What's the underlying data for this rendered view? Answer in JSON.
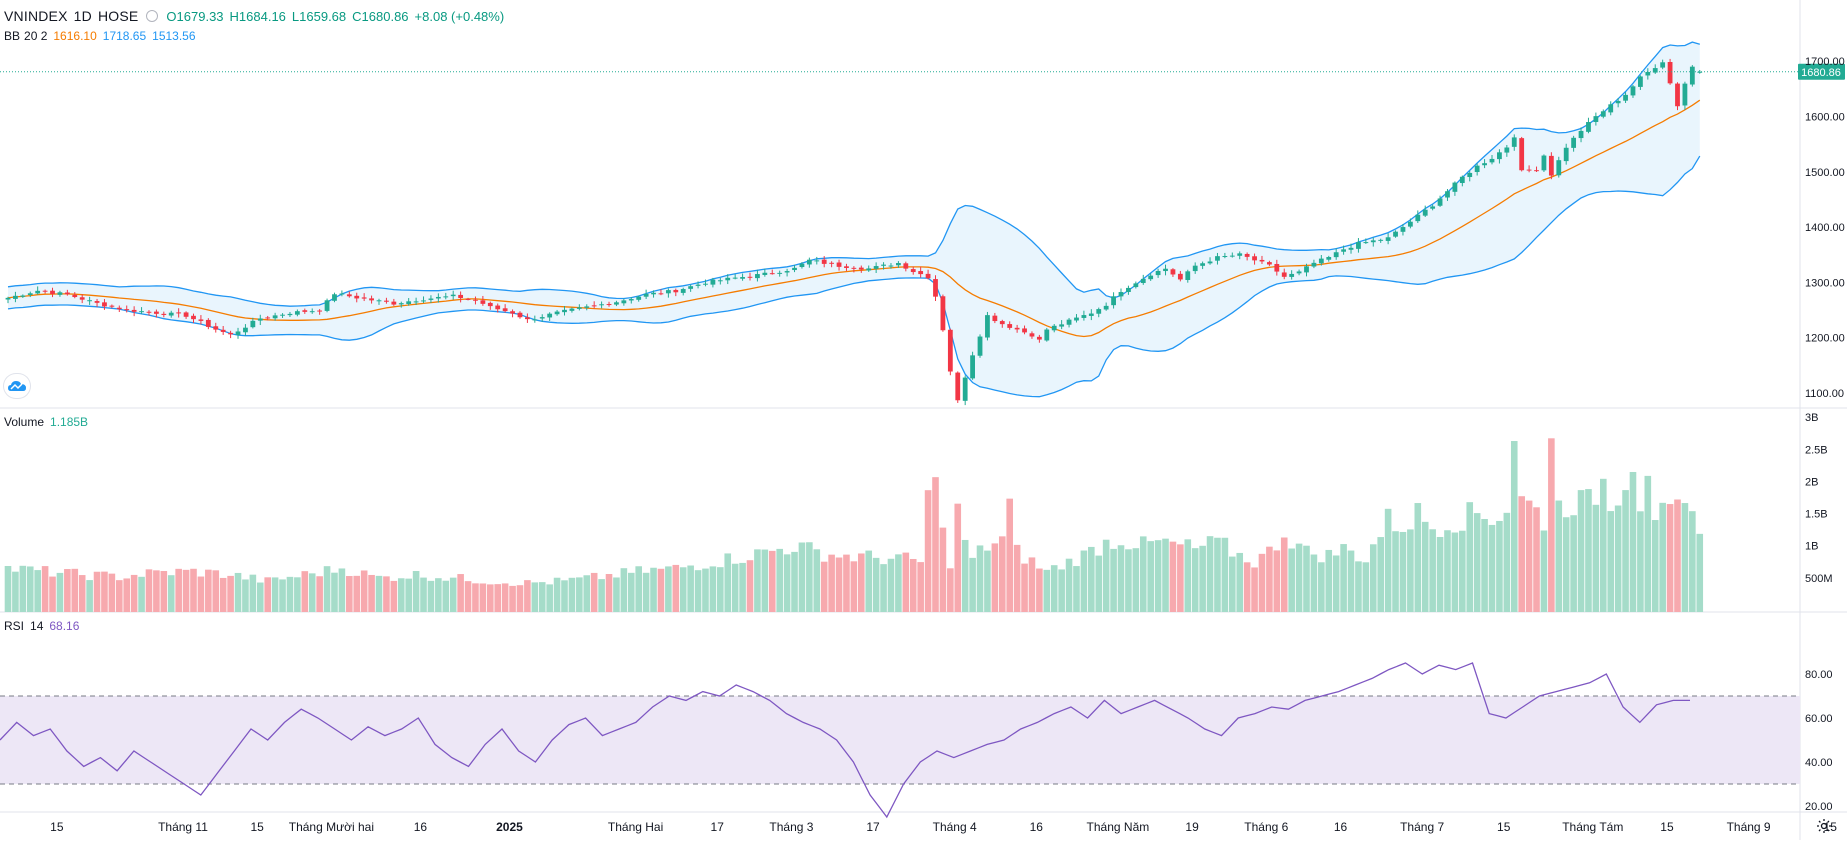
{
  "header": {
    "symbol": "VNINDEX",
    "interval": "1D",
    "exchange": "HOSE",
    "open": "O1679.33",
    "high": "H1684.16",
    "low": "L1659.68",
    "close": "C1680.86",
    "change": "+8.08 (+0.48%)"
  },
  "bb_legend": {
    "name": "BB",
    "params": "20 2",
    "basis": "1616.10",
    "upper": "1718.65",
    "lower": "1513.56"
  },
  "volume_legend": {
    "name": "Volume",
    "value": "1.185B"
  },
  "rsi_legend": {
    "name": "RSI",
    "param": "14",
    "value": "68.16"
  },
  "last_price_label": "1680.86",
  "colors": {
    "up": "#22ab94",
    "down": "#f23645",
    "vol_up": "#a5dcc9",
    "vol_down": "#f7a9ae",
    "bb_line": "#2196f3",
    "bb_basis": "#f57c00",
    "bb_fill": "#e3f2fd",
    "rsi_line": "#7e57c2",
    "rsi_band": "#ede7f6",
    "grid": "#f0f3fa",
    "axis_text": "#131722"
  },
  "icons": {
    "logo": "tradingview-cloud-icon",
    "settings": "gear-icon"
  },
  "chart_data": [
    {
      "type": "candlestick",
      "title": "VNINDEX 1D HOSE",
      "y_ticks": [
        1100,
        1200,
        1300,
        1400,
        1500,
        1600,
        1700
      ],
      "y_tick_labels": [
        "1100.00",
        "1200.00",
        "1300.00",
        "1400.00",
        "1500.00",
        "1600.00",
        "1700.00"
      ],
      "x_labels": [
        {
          "i": 2,
          "label": "15"
        },
        {
          "i": 19,
          "label": "Tháng 11"
        },
        {
          "i": 29,
          "label": "15"
        },
        {
          "i": 39,
          "label": "Tháng Mười hai"
        },
        {
          "i": 51,
          "label": "16"
        },
        {
          "i": 63,
          "label": "2025"
        },
        {
          "i": 80,
          "label": "Tháng Hai"
        },
        {
          "i": 91,
          "label": "17"
        },
        {
          "i": 101,
          "label": "Tháng 3"
        },
        {
          "i": 112,
          "label": "17"
        },
        {
          "i": 123,
          "label": "Tháng 4"
        },
        {
          "i": 134,
          "label": "16"
        },
        {
          "i": 145,
          "label": "Tháng Năm"
        },
        {
          "i": 155,
          "label": "19"
        },
        {
          "i": 165,
          "label": "Tháng 6"
        },
        {
          "i": 175,
          "label": "16"
        },
        {
          "i": 186,
          "label": "Tháng 7"
        },
        {
          "i": 197,
          "label": "15"
        },
        {
          "i": 209,
          "label": "Tháng Tám"
        },
        {
          "i": 219,
          "label": "15"
        },
        {
          "i": 230,
          "label": "Tháng 9"
        },
        {
          "i": 241,
          "label": "15"
        }
      ],
      "close_keypoints": [
        [
          0,
          1272
        ],
        [
          4,
          1285
        ],
        [
          8,
          1278
        ],
        [
          12,
          1262
        ],
        [
          16,
          1250
        ],
        [
          20,
          1245
        ],
        [
          24,
          1240
        ],
        [
          28,
          1215
        ],
        [
          30,
          1205
        ],
        [
          34,
          1235
        ],
        [
          38,
          1245
        ],
        [
          42,
          1250
        ],
        [
          44,
          1280
        ],
        [
          48,
          1270
        ],
        [
          52,
          1262
        ],
        [
          56,
          1270
        ],
        [
          60,
          1275
        ],
        [
          63,
          1268
        ],
        [
          65,
          1255
        ],
        [
          68,
          1245
        ],
        [
          70,
          1232
        ],
        [
          74,
          1245
        ],
        [
          78,
          1255
        ],
        [
          82,
          1265
        ],
        [
          86,
          1278
        ],
        [
          90,
          1285
        ],
        [
          94,
          1300
        ],
        [
          98,
          1308
        ],
        [
          102,
          1315
        ],
        [
          106,
          1325
        ],
        [
          108,
          1340
        ],
        [
          112,
          1330
        ],
        [
          116,
          1325
        ],
        [
          120,
          1335
        ],
        [
          122,
          1320
        ],
        [
          124,
          1310
        ],
        [
          125,
          1275
        ],
        [
          126,
          1215
        ],
        [
          127,
          1140
        ],
        [
          128,
          1085
        ],
        [
          129,
          1130
        ],
        [
          130,
          1170
        ],
        [
          131,
          1205
        ],
        [
          132,
          1240
        ],
        [
          134,
          1225
        ],
        [
          136,
          1215
        ],
        [
          138,
          1205
        ],
        [
          139,
          1195
        ],
        [
          140,
          1215
        ],
        [
          142,
          1225
        ],
        [
          144,
          1235
        ],
        [
          146,
          1245
        ],
        [
          148,
          1260
        ],
        [
          150,
          1285
        ],
        [
          152,
          1300
        ],
        [
          154,
          1315
        ],
        [
          156,
          1325
        ],
        [
          158,
          1305
        ],
        [
          160,
          1330
        ],
        [
          163,
          1345
        ],
        [
          166,
          1350
        ],
        [
          168,
          1340
        ],
        [
          170,
          1330
        ],
        [
          172,
          1310
        ],
        [
          174,
          1318
        ],
        [
          176,
          1335
        ],
        [
          178,
          1345
        ],
        [
          180,
          1360
        ],
        [
          182,
          1370
        ],
        [
          184,
          1375
        ],
        [
          186,
          1380
        ],
        [
          188,
          1400
        ],
        [
          190,
          1420
        ],
        [
          192,
          1440
        ],
        [
          194,
          1465
        ],
        [
          196,
          1490
        ],
        [
          198,
          1510
        ],
        [
          200,
          1525
        ],
        [
          202,
          1545
        ],
        [
          203,
          1565
        ],
        [
          204,
          1500
        ],
        [
          206,
          1505
        ],
        [
          207,
          1530
        ],
        [
          208,
          1495
        ],
        [
          210,
          1545
        ],
        [
          212,
          1575
        ],
        [
          214,
          1600
        ],
        [
          216,
          1620
        ],
        [
          218,
          1640
        ],
        [
          220,
          1670
        ],
        [
          222,
          1690
        ],
        [
          223,
          1700
        ],
        [
          224,
          1660
        ],
        [
          225,
          1620
        ],
        [
          226,
          1660
        ],
        [
          227,
          1690
        ],
        [
          228,
          1681
        ]
      ],
      "volume_keypoints": [
        [
          0,
          0.65
        ],
        [
          5,
          0.6
        ],
        [
          10,
          0.55
        ],
        [
          15,
          0.52
        ],
        [
          20,
          0.58
        ],
        [
          25,
          0.6
        ],
        [
          30,
          0.55
        ],
        [
          35,
          0.45
        ],
        [
          40,
          0.55
        ],
        [
          45,
          0.65
        ],
        [
          50,
          0.5
        ],
        [
          55,
          0.55
        ],
        [
          60,
          0.5
        ],
        [
          65,
          0.45
        ],
        [
          70,
          0.42
        ],
        [
          75,
          0.45
        ],
        [
          80,
          0.52
        ],
        [
          85,
          0.6
        ],
        [
          90,
          0.65
        ],
        [
          95,
          0.75
        ],
        [
          100,
          0.85
        ],
        [
          103,
          0.92
        ],
        [
          106,
          1.0
        ],
        [
          109,
          0.9
        ],
        [
          112,
          0.85
        ],
        [
          116,
          0.82
        ],
        [
          120,
          0.8
        ],
        [
          123,
          0.75
        ],
        [
          124,
          1.75
        ],
        [
          125,
          1.9
        ],
        [
          126,
          1.5
        ],
        [
          127,
          0.6
        ],
        [
          128,
          1.7
        ],
        [
          129,
          1.0
        ],
        [
          130,
          0.8
        ],
        [
          131,
          0.9
        ],
        [
          132,
          1.0
        ],
        [
          134,
          1.1
        ],
        [
          135,
          1.6
        ],
        [
          136,
          0.9
        ],
        [
          138,
          0.75
        ],
        [
          140,
          0.6
        ],
        [
          142,
          0.7
        ],
        [
          145,
          0.85
        ],
        [
          148,
          1.05
        ],
        [
          150,
          1.1
        ],
        [
          153,
          1.0
        ],
        [
          155,
          1.05
        ],
        [
          158,
          1.0
        ],
        [
          160,
          0.95
        ],
        [
          163,
          1.05
        ],
        [
          166,
          0.85
        ],
        [
          168,
          0.75
        ],
        [
          170,
          0.9
        ],
        [
          172,
          1.2
        ],
        [
          175,
          0.9
        ],
        [
          178,
          0.85
        ],
        [
          180,
          0.95
        ],
        [
          183,
          0.8
        ],
        [
          186,
          1.4
        ],
        [
          188,
          1.3
        ],
        [
          190,
          1.5
        ],
        [
          192,
          1.3
        ],
        [
          195,
          1.4
        ],
        [
          198,
          1.5
        ],
        [
          200,
          1.45
        ],
        [
          202,
          1.55
        ],
        [
          203,
          2.8
        ],
        [
          204,
          1.7
        ],
        [
          205,
          1.65
        ],
        [
          207,
          1.4
        ],
        [
          208,
          2.8
        ],
        [
          209,
          1.6
        ],
        [
          211,
          1.7
        ],
        [
          213,
          1.65
        ],
        [
          215,
          2.0
        ],
        [
          216,
          1.7
        ],
        [
          218,
          2.05
        ],
        [
          219,
          2.4
        ],
        [
          220,
          1.7
        ],
        [
          221,
          2.3
        ],
        [
          222,
          1.5
        ],
        [
          224,
          1.45
        ],
        [
          226,
          1.55
        ],
        [
          228,
          1.185
        ]
      ],
      "volume_ticks": [
        {
          "v": 0.5,
          "label": "500M"
        },
        {
          "v": 1.0,
          "label": "1B"
        },
        {
          "v": 1.5,
          "label": "1.5B"
        },
        {
          "v": 2.0,
          "label": "2B"
        },
        {
          "v": 2.5,
          "label": "2.5B"
        },
        {
          "v": 3.0,
          "label": "3B"
        }
      ],
      "rsi_keypoints": [
        [
          0,
          50
        ],
        [
          2,
          58
        ],
        [
          4,
          52
        ],
        [
          6,
          55
        ],
        [
          8,
          45
        ],
        [
          10,
          38
        ],
        [
          12,
          42
        ],
        [
          14,
          36
        ],
        [
          16,
          45
        ],
        [
          18,
          40
        ],
        [
          20,
          35
        ],
        [
          22,
          30
        ],
        [
          24,
          25
        ],
        [
          26,
          35
        ],
        [
          28,
          45
        ],
        [
          30,
          55
        ],
        [
          32,
          50
        ],
        [
          34,
          58
        ],
        [
          36,
          64
        ],
        [
          38,
          60
        ],
        [
          40,
          55
        ],
        [
          42,
          50
        ],
        [
          44,
          56
        ],
        [
          46,
          52
        ],
        [
          48,
          55
        ],
        [
          50,
          60
        ],
        [
          52,
          48
        ],
        [
          54,
          42
        ],
        [
          56,
          38
        ],
        [
          58,
          48
        ],
        [
          60,
          55
        ],
        [
          62,
          45
        ],
        [
          64,
          40
        ],
        [
          66,
          50
        ],
        [
          68,
          57
        ],
        [
          70,
          60
        ],
        [
          72,
          52
        ],
        [
          74,
          55
        ],
        [
          76,
          58
        ],
        [
          78,
          65
        ],
        [
          80,
          70
        ],
        [
          82,
          68
        ],
        [
          84,
          72
        ],
        [
          86,
          70
        ],
        [
          88,
          75
        ],
        [
          90,
          72
        ],
        [
          92,
          68
        ],
        [
          94,
          62
        ],
        [
          96,
          58
        ],
        [
          98,
          55
        ],
        [
          100,
          50
        ],
        [
          102,
          40
        ],
        [
          104,
          25
        ],
        [
          106,
          15
        ],
        [
          108,
          30
        ],
        [
          110,
          40
        ],
        [
          112,
          45
        ],
        [
          114,
          42
        ],
        [
          116,
          45
        ],
        [
          118,
          48
        ],
        [
          120,
          50
        ],
        [
          122,
          55
        ],
        [
          124,
          58
        ],
        [
          126,
          62
        ],
        [
          128,
          65
        ],
        [
          130,
          60
        ],
        [
          132,
          68
        ],
        [
          134,
          62
        ],
        [
          136,
          65
        ],
        [
          138,
          68
        ],
        [
          140,
          64
        ],
        [
          142,
          60
        ],
        [
          144,
          55
        ],
        [
          146,
          52
        ],
        [
          148,
          60
        ],
        [
          150,
          62
        ],
        [
          152,
          65
        ],
        [
          154,
          64
        ],
        [
          156,
          68
        ],
        [
          158,
          70
        ],
        [
          160,
          72
        ],
        [
          162,
          75
        ],
        [
          164,
          78
        ],
        [
          166,
          82
        ],
        [
          168,
          85
        ],
        [
          170,
          80
        ],
        [
          172,
          84
        ],
        [
          174,
          82
        ],
        [
          176,
          85
        ],
        [
          178,
          62
        ],
        [
          180,
          60
        ],
        [
          182,
          65
        ],
        [
          184,
          70
        ],
        [
          186,
          72
        ],
        [
          188,
          74
        ],
        [
          190,
          76
        ],
        [
          192,
          80
        ],
        [
          194,
          65
        ],
        [
          196,
          58
        ],
        [
          198,
          66
        ],
        [
          200,
          68
        ],
        [
          202,
          68
        ]
      ],
      "rsi_ticks": [
        20,
        40,
        60,
        80
      ],
      "rsi_tick_labels": [
        "20.00",
        "40.00",
        "60.00",
        "80.00"
      ],
      "rsi_bands": [
        30,
        70
      ]
    }
  ]
}
